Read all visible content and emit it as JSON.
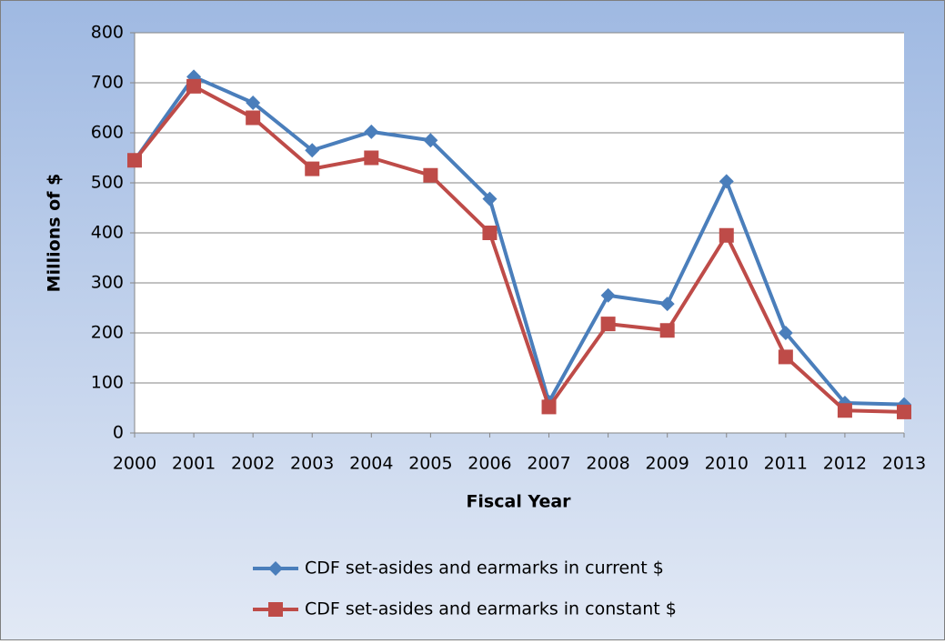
{
  "chart_data": {
    "type": "line",
    "x_label": "Fiscal Year",
    "y_label": "Millions of $",
    "categories": [
      "2000",
      "2001",
      "2002",
      "2003",
      "2004",
      "2005",
      "2006",
      "2007",
      "2008",
      "2009",
      "2010",
      "2011",
      "2012",
      "2013"
    ],
    "series": [
      {
        "name": "CDF set-asides and earmarks in current $",
        "color": "#4a7ebb",
        "marker": "diamond",
        "values": [
          545,
          712,
          660,
          565,
          602,
          585,
          468,
          62,
          275,
          258,
          503,
          200,
          60,
          57
        ]
      },
      {
        "name": "CDF set-asides and earmarks in constant $",
        "color": "#be4b48",
        "marker": "square",
        "values": [
          545,
          693,
          630,
          528,
          550,
          515,
          400,
          52,
          218,
          205,
          395,
          152,
          45,
          42
        ]
      }
    ],
    "ylim": [
      0,
      800
    ],
    "yticks": [
      0,
      100,
      200,
      300,
      400,
      500,
      600,
      700,
      800
    ],
    "grid": true,
    "legend": "bottom"
  }
}
